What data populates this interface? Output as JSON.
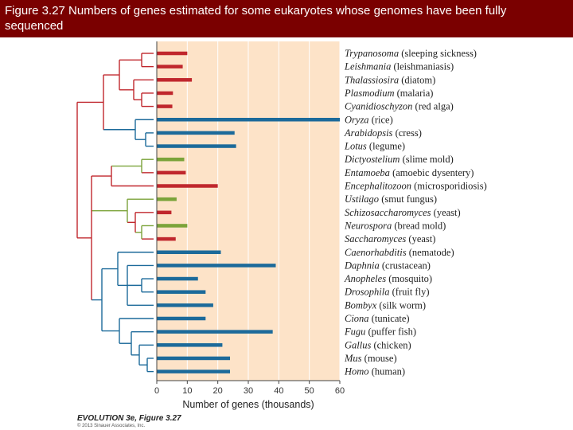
{
  "slide": {
    "title": "Figure 3.27  Numbers of genes estimated for some eukaryotes whose genomes have been fully sequenced"
  },
  "colors": {
    "title_bg": "#7a0000",
    "plot_bg": "#fde3c8",
    "red": "#c0272d",
    "blue": "#1c6a9a",
    "green": "#7ba33a",
    "grid": "#ffffff"
  },
  "chart_data": {
    "type": "bar",
    "orientation": "horizontal",
    "xlabel": "Number of genes (thousands)",
    "xlim": [
      0,
      60
    ],
    "xticks": [
      0,
      10,
      20,
      30,
      40,
      50,
      60
    ],
    "categories": [
      {
        "name": "Trypanosoma",
        "common": "(sleeping sickness)",
        "value": 10,
        "color": "red"
      },
      {
        "name": "Leishmania",
        "common": "(leishmaniasis)",
        "value": 8.5,
        "color": "red"
      },
      {
        "name": "Thalassiosira",
        "common": "(diatom)",
        "value": 11.5,
        "color": "red"
      },
      {
        "name": "Plasmodium",
        "common": "(malaria)",
        "value": 5.3,
        "color": "red"
      },
      {
        "name": "Cyanidioschyzon",
        "common": "(red alga)",
        "value": 5.1,
        "color": "red"
      },
      {
        "name": "Oryza",
        "common": "(rice)",
        "value": 60,
        "color": "blue"
      },
      {
        "name": "Arabidopsis",
        "common": "(cress)",
        "value": 25.5,
        "color": "blue"
      },
      {
        "name": "Lotus",
        "common": "(legume)",
        "value": 26,
        "color": "blue"
      },
      {
        "name": "Dictyostelium",
        "common": "(slime mold)",
        "value": 9,
        "color": "green"
      },
      {
        "name": "Entamoeba",
        "common": "(amoebic dysentery)",
        "value": 9.5,
        "color": "red"
      },
      {
        "name": "Encephalitozoon",
        "common": "(microsporidiosis)",
        "value": 20,
        "color": "red"
      },
      {
        "name": "Ustilago",
        "common": "(smut fungus)",
        "value": 6.5,
        "color": "green"
      },
      {
        "name": "Schizosaccharomyces",
        "common": "(yeast)",
        "value": 4.8,
        "color": "red"
      },
      {
        "name": "Neurospora",
        "common": "(bread mold)",
        "value": 10,
        "color": "green"
      },
      {
        "name": "Saccharomyces",
        "common": "(yeast)",
        "value": 6.2,
        "color": "red"
      },
      {
        "name": "Caenorhabditis",
        "common": "(nematode)",
        "value": 21,
        "color": "blue"
      },
      {
        "name": "Daphnia",
        "common": "(crustacean)",
        "value": 39,
        "color": "blue"
      },
      {
        "name": "Anopheles",
        "common": "(mosquito)",
        "value": 13.5,
        "color": "blue"
      },
      {
        "name": "Drosophila",
        "common": "(fruit fly)",
        "value": 16,
        "color": "blue"
      },
      {
        "name": "Bombyx",
        "common": "(silk worm)",
        "value": 18.5,
        "color": "blue"
      },
      {
        "name": "Ciona",
        "common": "(tunicate)",
        "value": 16,
        "color": "blue"
      },
      {
        "name": "Fugu",
        "common": "(puffer fish)",
        "value": 38,
        "color": "blue"
      },
      {
        "name": "Gallus",
        "common": "(chicken)",
        "value": 21.5,
        "color": "blue"
      },
      {
        "name": "Mus",
        "common": "(mouse)",
        "value": 24,
        "color": "blue"
      },
      {
        "name": "Homo",
        "common": "(human)",
        "value": 24,
        "color": "blue"
      }
    ]
  },
  "footer": {
    "credit": "EVOLUTION 3e, Figure 3.27",
    "copyright": "© 2013 Sinauer Associates, Inc."
  }
}
